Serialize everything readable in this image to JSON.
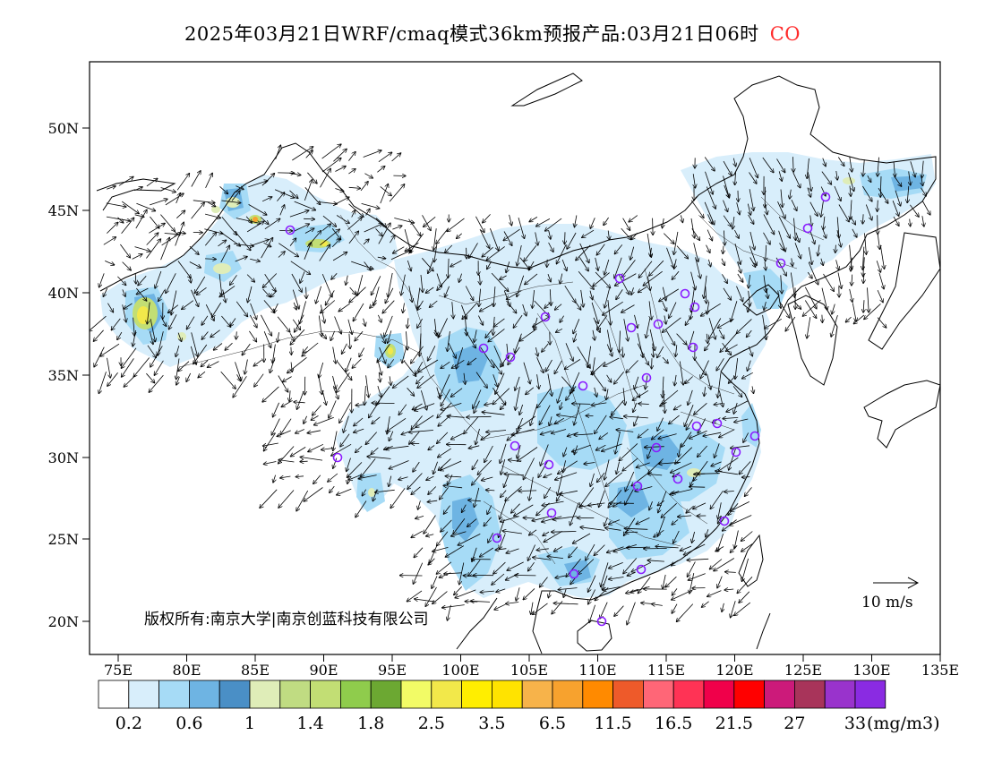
{
  "header": {
    "title": "2025年03月21日WRF/cmaq模式36km预报产品:03月21日06时",
    "species": "CO",
    "species_color": "#ff2a2a"
  },
  "map": {
    "lat_labels": [
      "50N",
      "45N",
      "40N",
      "35N",
      "30N",
      "25N",
      "20N"
    ],
    "lon_labels": [
      "75E",
      "80E",
      "85E",
      "90E",
      "95E",
      "100E",
      "105E",
      "110E",
      "115E",
      "120E",
      "125E",
      "130E",
      "135E"
    ],
    "copyright": "版权所有:南京大学|南京创蓝科技有限公司",
    "wind_scale_label": "10 m/s",
    "station_marker_color": "#8a1cff",
    "shading_colors": {
      "pale": "#d8eefb",
      "light": "#a6dbf6",
      "mid": "#6eb4e3",
      "dark": "#3e8cc9",
      "green_light": "#dfedb8",
      "green": "#c2de74",
      "yellow": "#f2e84a",
      "orange": "#f7a22e"
    }
  },
  "legend": {
    "colors": [
      "#ffffff",
      "#d8eefb",
      "#a6dbf6",
      "#6eb4e3",
      "#4a8fc6",
      "#dfedb8",
      "#c0dc82",
      "#c2de74",
      "#8fcc4c",
      "#6ca832",
      "#f2fb66",
      "#f2e84a",
      "#ffee00",
      "#ffe300",
      "#f7b34a",
      "#f7a22e",
      "#ff8a00",
      "#ee5a2a",
      "#ff6677",
      "#ff3355",
      "#f0004a",
      "#ff0000",
      "#cc1a7a",
      "#a8345a",
      "#9933cc",
      "#8a2be2"
    ],
    "labels": [
      "0.2",
      "0.6",
      "1",
      "1.4",
      "1.8",
      "2.5",
      "3.5",
      "6.5",
      "11.5",
      "16.5",
      "21.5",
      "27",
      "33"
    ],
    "unit": "(mg/m3)"
  }
}
